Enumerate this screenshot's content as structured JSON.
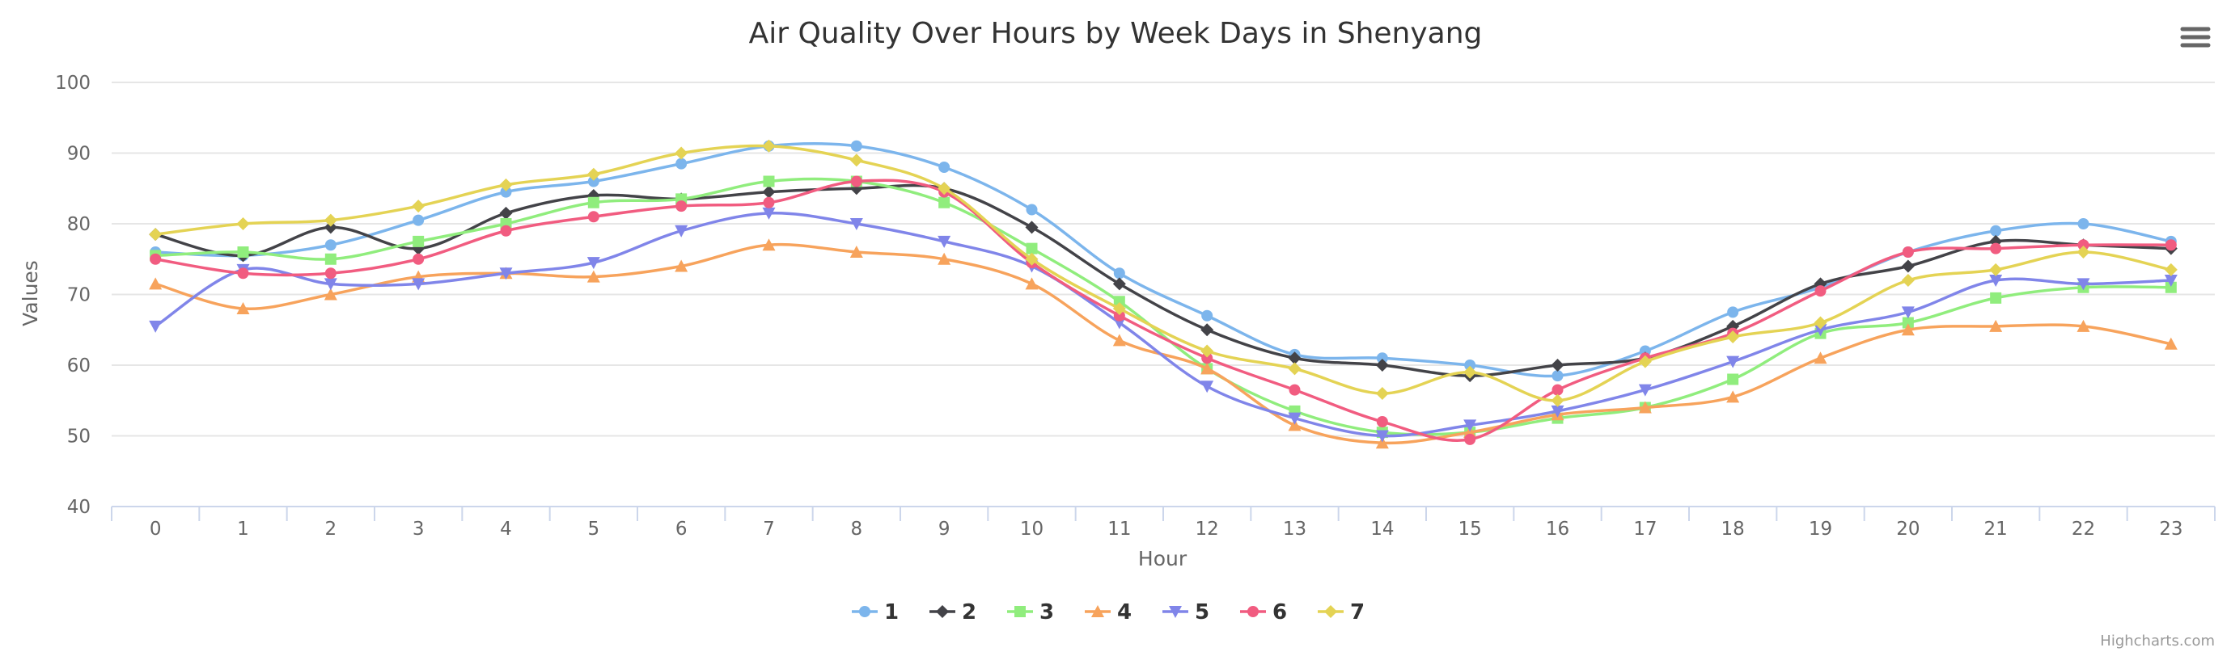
{
  "chart_data": {
    "type": "line",
    "title": "Air Quality Over Hours by Week Days in Shenyang",
    "xlabel": "Hour",
    "ylabel": "Values",
    "ylim": [
      40,
      100
    ],
    "yticks": [
      40,
      50,
      60,
      70,
      80,
      90,
      100
    ],
    "categories": [
      "0",
      "1",
      "2",
      "3",
      "4",
      "5",
      "6",
      "7",
      "8",
      "9",
      "10",
      "11",
      "12",
      "13",
      "14",
      "15",
      "16",
      "17",
      "18",
      "19",
      "20",
      "21",
      "22",
      "23"
    ],
    "grid": true,
    "legend_position": "bottom-center",
    "series": [
      {
        "name": "1",
        "color": "#7cb5ec",
        "marker": "circle",
        "values": [
          76,
          75.5,
          77,
          80.5,
          84.5,
          86,
          88.5,
          91,
          91,
          88,
          82,
          73,
          67,
          61.5,
          61,
          60,
          58.5,
          62,
          67.5,
          71,
          76,
          79,
          80,
          77.5
        ]
      },
      {
        "name": "2",
        "color": "#434348",
        "marker": "diamond",
        "values": [
          78.5,
          75.5,
          79.5,
          76.5,
          81.5,
          84,
          83.5,
          84.5,
          85,
          85,
          79.5,
          71.5,
          65,
          61,
          60,
          58.5,
          60,
          61,
          65.5,
          71.5,
          74,
          77.5,
          77,
          76.5
        ]
      },
      {
        "name": "3",
        "color": "#90ed7d",
        "marker": "square",
        "values": [
          75.5,
          76,
          75,
          77.5,
          80,
          83,
          83.5,
          86,
          86,
          83,
          76.5,
          69,
          59.5,
          53.5,
          50.5,
          50.5,
          52.5,
          54,
          58,
          64.5,
          66,
          69.5,
          71,
          71
        ]
      },
      {
        "name": "4",
        "color": "#f7a35c",
        "marker": "triangle",
        "values": [
          71.5,
          68,
          70,
          72.5,
          73,
          72.5,
          74,
          77,
          76,
          75,
          71.5,
          63.5,
          59.5,
          51.5,
          49,
          50.5,
          53,
          54,
          55.5,
          61,
          65,
          65.5,
          65.5,
          63
        ]
      },
      {
        "name": "5",
        "color": "#8085e9",
        "marker": "triangle-down",
        "values": [
          65.5,
          73.5,
          71.5,
          71.5,
          73,
          74.5,
          79,
          81.5,
          80,
          77.5,
          74,
          66,
          57,
          52.5,
          50,
          51.5,
          53.5,
          56.5,
          60.5,
          65,
          67.5,
          72,
          71.5,
          72
        ]
      },
      {
        "name": "6",
        "color": "#f15c80",
        "marker": "circle",
        "values": [
          75,
          73,
          73,
          75,
          79,
          81,
          82.5,
          83,
          86,
          84.5,
          74.5,
          67,
          61,
          56.5,
          52,
          49.5,
          56.5,
          61,
          64.5,
          70.5,
          76,
          76.5,
          77,
          77
        ]
      },
      {
        "name": "7",
        "color": "#e4d354",
        "marker": "diamond",
        "values": [
          78.5,
          80,
          80.5,
          82.5,
          85.5,
          87,
          90,
          91,
          89,
          85,
          75,
          68,
          62,
          59.5,
          56,
          59,
          55,
          60.5,
          64,
          66,
          72,
          73.5,
          76,
          73.5
        ]
      }
    ]
  },
  "credits": "Highcharts.com",
  "menu_icon": "hamburger-menu-icon"
}
